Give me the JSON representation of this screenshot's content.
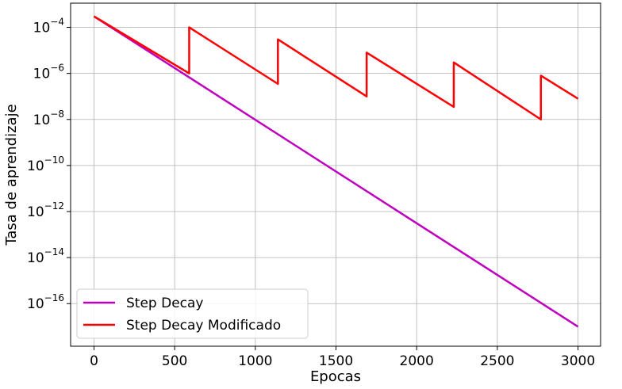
{
  "chart_data": {
    "type": "line",
    "title": "",
    "xlabel": "Epocas",
    "ylabel": "Tasa de aprendizaje",
    "xlim": [
      -145,
      3140
    ],
    "ylim_log10": [
      -17.85,
      -2.95
    ],
    "yscale": "log",
    "grid": true,
    "legend_position": "lower-left",
    "x_ticks": [
      {
        "value": 0,
        "label": "0"
      },
      {
        "value": 500,
        "label": "500"
      },
      {
        "value": 1000,
        "label": "1000"
      },
      {
        "value": 1500,
        "label": "1500"
      },
      {
        "value": 2000,
        "label": "2000"
      },
      {
        "value": 2500,
        "label": "2500"
      },
      {
        "value": 3000,
        "label": "3000"
      }
    ],
    "y_ticks": [
      {
        "exp": -4,
        "base": "10",
        "sup": "−4"
      },
      {
        "exp": -6,
        "base": "10",
        "sup": "−6"
      },
      {
        "exp": -8,
        "base": "10",
        "sup": "−8"
      },
      {
        "exp": -10,
        "base": "10",
        "sup": "−10"
      },
      {
        "exp": -12,
        "base": "10",
        "sup": "−12"
      },
      {
        "exp": -14,
        "base": "10",
        "sup": "−14"
      },
      {
        "exp": -16,
        "base": "10",
        "sup": "−16"
      }
    ],
    "series": [
      {
        "name": "Step Decay",
        "color": "#bf00bf",
        "x": [
          0,
          3000
        ],
        "y": [
          0.0003,
          1e-17
        ]
      },
      {
        "name": "Step Decay Modificado",
        "color": "#ff0000",
        "x": [
          0,
          590,
          590,
          1140,
          1140,
          1690,
          1690,
          2230,
          2230,
          2770,
          2770,
          3000
        ],
        "y": [
          0.0003,
          1e-06,
          0.0001,
          3.5e-07,
          3e-05,
          1e-07,
          8e-06,
          3.5e-08,
          3e-06,
          1e-08,
          8e-07,
          8e-08
        ]
      }
    ]
  }
}
